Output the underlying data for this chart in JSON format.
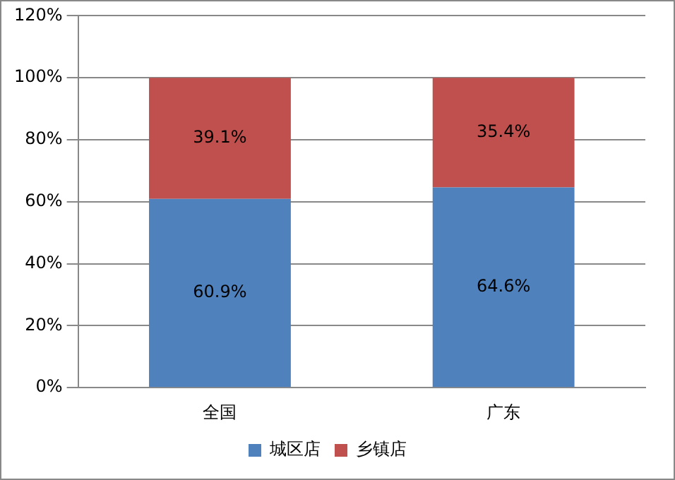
{
  "chart_data": {
    "type": "bar",
    "stacked": true,
    "categories": [
      "全国",
      "广东"
    ],
    "series": [
      {
        "name": "城区店",
        "color": "#4f81bd",
        "values": [
          60.9,
          64.6
        ],
        "value_labels": [
          "60.9%",
          "64.6%"
        ]
      },
      {
        "name": "乡镇店",
        "color": "#c0504d",
        "values": [
          39.1,
          35.4
        ],
        "value_labels": [
          "39.1%",
          "35.4%"
        ]
      }
    ],
    "ylim": [
      0,
      120
    ],
    "yticks": [
      {
        "value": 0,
        "label": "0%"
      },
      {
        "value": 20,
        "label": "20%"
      },
      {
        "value": 40,
        "label": "40%"
      },
      {
        "value": 60,
        "label": "60%"
      },
      {
        "value": 80,
        "label": "80%"
      },
      {
        "value": 100,
        "label": "100%"
      },
      {
        "value": 120,
        "label": "120%"
      }
    ],
    "grid": "y",
    "legend": "bottom"
  }
}
